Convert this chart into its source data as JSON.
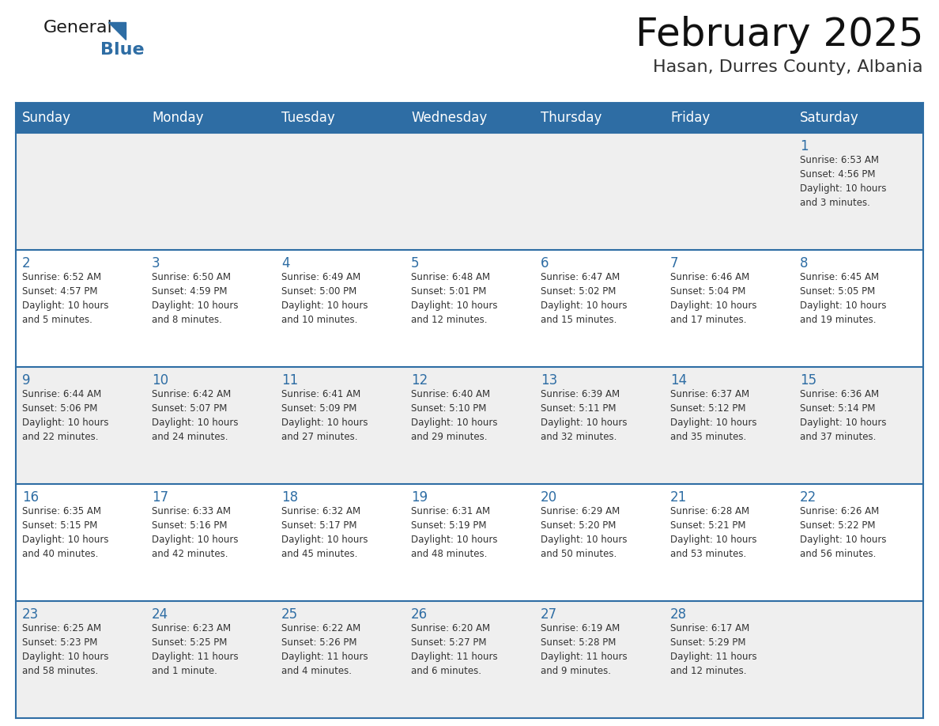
{
  "title": "February 2025",
  "subtitle": "Hasan, Durres County, Albania",
  "header_bg": "#2E6DA4",
  "header_text_color": "#FFFFFF",
  "cell_bg_odd": "#EFEFEF",
  "cell_bg_even": "#FFFFFF",
  "cell_text_color": "#333333",
  "day_number_color": "#2E6DA4",
  "border_color": "#2E6DA4",
  "days_of_week": [
    "Sunday",
    "Monday",
    "Tuesday",
    "Wednesday",
    "Thursday",
    "Friday",
    "Saturday"
  ],
  "weeks": [
    [
      {
        "day": "",
        "info": ""
      },
      {
        "day": "",
        "info": ""
      },
      {
        "day": "",
        "info": ""
      },
      {
        "day": "",
        "info": ""
      },
      {
        "day": "",
        "info": ""
      },
      {
        "day": "",
        "info": ""
      },
      {
        "day": "1",
        "info": "Sunrise: 6:53 AM\nSunset: 4:56 PM\nDaylight: 10 hours\nand 3 minutes."
      }
    ],
    [
      {
        "day": "2",
        "info": "Sunrise: 6:52 AM\nSunset: 4:57 PM\nDaylight: 10 hours\nand 5 minutes."
      },
      {
        "day": "3",
        "info": "Sunrise: 6:50 AM\nSunset: 4:59 PM\nDaylight: 10 hours\nand 8 minutes."
      },
      {
        "day": "4",
        "info": "Sunrise: 6:49 AM\nSunset: 5:00 PM\nDaylight: 10 hours\nand 10 minutes."
      },
      {
        "day": "5",
        "info": "Sunrise: 6:48 AM\nSunset: 5:01 PM\nDaylight: 10 hours\nand 12 minutes."
      },
      {
        "day": "6",
        "info": "Sunrise: 6:47 AM\nSunset: 5:02 PM\nDaylight: 10 hours\nand 15 minutes."
      },
      {
        "day": "7",
        "info": "Sunrise: 6:46 AM\nSunset: 5:04 PM\nDaylight: 10 hours\nand 17 minutes."
      },
      {
        "day": "8",
        "info": "Sunrise: 6:45 AM\nSunset: 5:05 PM\nDaylight: 10 hours\nand 19 minutes."
      }
    ],
    [
      {
        "day": "9",
        "info": "Sunrise: 6:44 AM\nSunset: 5:06 PM\nDaylight: 10 hours\nand 22 minutes."
      },
      {
        "day": "10",
        "info": "Sunrise: 6:42 AM\nSunset: 5:07 PM\nDaylight: 10 hours\nand 24 minutes."
      },
      {
        "day": "11",
        "info": "Sunrise: 6:41 AM\nSunset: 5:09 PM\nDaylight: 10 hours\nand 27 minutes."
      },
      {
        "day": "12",
        "info": "Sunrise: 6:40 AM\nSunset: 5:10 PM\nDaylight: 10 hours\nand 29 minutes."
      },
      {
        "day": "13",
        "info": "Sunrise: 6:39 AM\nSunset: 5:11 PM\nDaylight: 10 hours\nand 32 minutes."
      },
      {
        "day": "14",
        "info": "Sunrise: 6:37 AM\nSunset: 5:12 PM\nDaylight: 10 hours\nand 35 minutes."
      },
      {
        "day": "15",
        "info": "Sunrise: 6:36 AM\nSunset: 5:14 PM\nDaylight: 10 hours\nand 37 minutes."
      }
    ],
    [
      {
        "day": "16",
        "info": "Sunrise: 6:35 AM\nSunset: 5:15 PM\nDaylight: 10 hours\nand 40 minutes."
      },
      {
        "day": "17",
        "info": "Sunrise: 6:33 AM\nSunset: 5:16 PM\nDaylight: 10 hours\nand 42 minutes."
      },
      {
        "day": "18",
        "info": "Sunrise: 6:32 AM\nSunset: 5:17 PM\nDaylight: 10 hours\nand 45 minutes."
      },
      {
        "day": "19",
        "info": "Sunrise: 6:31 AM\nSunset: 5:19 PM\nDaylight: 10 hours\nand 48 minutes."
      },
      {
        "day": "20",
        "info": "Sunrise: 6:29 AM\nSunset: 5:20 PM\nDaylight: 10 hours\nand 50 minutes."
      },
      {
        "day": "21",
        "info": "Sunrise: 6:28 AM\nSunset: 5:21 PM\nDaylight: 10 hours\nand 53 minutes."
      },
      {
        "day": "22",
        "info": "Sunrise: 6:26 AM\nSunset: 5:22 PM\nDaylight: 10 hours\nand 56 minutes."
      }
    ],
    [
      {
        "day": "23",
        "info": "Sunrise: 6:25 AM\nSunset: 5:23 PM\nDaylight: 10 hours\nand 58 minutes."
      },
      {
        "day": "24",
        "info": "Sunrise: 6:23 AM\nSunset: 5:25 PM\nDaylight: 11 hours\nand 1 minute."
      },
      {
        "day": "25",
        "info": "Sunrise: 6:22 AM\nSunset: 5:26 PM\nDaylight: 11 hours\nand 4 minutes."
      },
      {
        "day": "26",
        "info": "Sunrise: 6:20 AM\nSunset: 5:27 PM\nDaylight: 11 hours\nand 6 minutes."
      },
      {
        "day": "27",
        "info": "Sunrise: 6:19 AM\nSunset: 5:28 PM\nDaylight: 11 hours\nand 9 minutes."
      },
      {
        "day": "28",
        "info": "Sunrise: 6:17 AM\nSunset: 5:29 PM\nDaylight: 11 hours\nand 12 minutes."
      },
      {
        "day": "",
        "info": ""
      }
    ]
  ],
  "logo_text1": "General",
  "logo_text2": "Blue",
  "logo_text1_color": "#1a1a1a",
  "logo_text2_color": "#2E6DA4",
  "logo_triangle_color": "#2E6DA4",
  "title_fontsize": 36,
  "subtitle_fontsize": 16,
  "header_fontsize": 12,
  "day_num_fontsize": 12,
  "info_fontsize": 8.5
}
